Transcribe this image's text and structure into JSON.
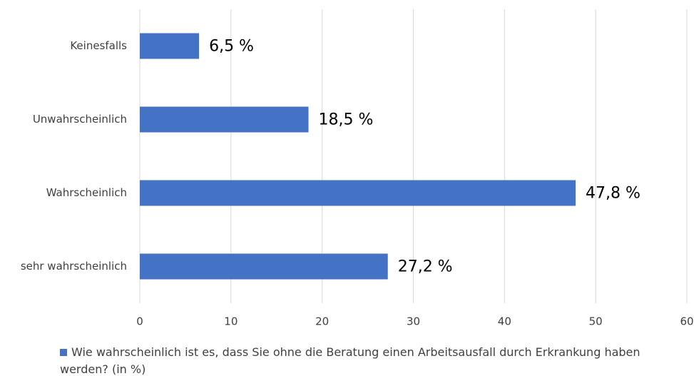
{
  "chart_data": {
    "type": "bar",
    "orientation": "horizontal",
    "categories": [
      "Keinesfalls",
      "Unwahrscheinlich",
      "Wahrscheinlich",
      "sehr wahrscheinlich"
    ],
    "series": [
      {
        "name": "Wie wahrscheinlich ist es, dass Sie ohne die Beratung einen Arbeitsausfall durch Erkrankung haben werden? (in %)",
        "color": "#4472c4",
        "values": [
          6.5,
          18.5,
          47.8,
          27.2
        ],
        "value_labels": [
          "6,5 %",
          "18,5 %",
          "47,8 %",
          "27,2 %"
        ]
      }
    ],
    "xlim": [
      0,
      60
    ],
    "xticks": [
      0,
      10,
      20,
      30,
      40,
      50,
      60
    ],
    "grid": true,
    "legend": "bottom"
  }
}
